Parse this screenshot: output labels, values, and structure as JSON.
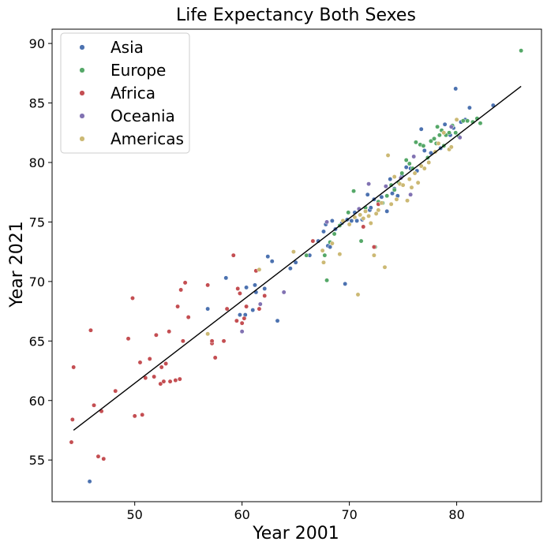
{
  "chart_data": {
    "type": "scatter",
    "title": "Life Expectancy Both Sexes",
    "xlabel": "Year 2001",
    "ylabel": "Year 2021",
    "xlim": [
      42.3,
      87.9
    ],
    "ylim": [
      51.5,
      91.2
    ],
    "xticks": [
      50,
      60,
      70,
      80
    ],
    "yticks": [
      55,
      60,
      65,
      70,
      75,
      80,
      85,
      90
    ],
    "legend_position": "upper-left",
    "grid": false,
    "fit_line": {
      "x": [
        44.3,
        86.0
      ],
      "y": [
        57.5,
        86.4
      ],
      "color": "#000000"
    },
    "series": [
      {
        "name": "Asia",
        "color": "#4c72b0",
        "points": [
          [
            45.8,
            53.2
          ],
          [
            56.8,
            67.7
          ],
          [
            58.5,
            70.3
          ],
          [
            59.8,
            67.2
          ],
          [
            60.3,
            67.2
          ],
          [
            60.4,
            69.5
          ],
          [
            61.0,
            67.6
          ],
          [
            61.3,
            69.1
          ],
          [
            61.2,
            69.7
          ],
          [
            62.1,
            69.4
          ],
          [
            62.4,
            72.1
          ],
          [
            62.8,
            71.7
          ],
          [
            63.3,
            66.7
          ],
          [
            64.5,
            71.1
          ],
          [
            65.0,
            71.6
          ],
          [
            66.3,
            72.2
          ],
          [
            67.1,
            73.4
          ],
          [
            67.6,
            74.2
          ],
          [
            67.8,
            74.8
          ],
          [
            68.0,
            73.0
          ],
          [
            68.4,
            75.1
          ],
          [
            68.2,
            72.9
          ],
          [
            68.7,
            74.4
          ],
          [
            69.3,
            74.9
          ],
          [
            69.6,
            69.8
          ],
          [
            69.8,
            75.2
          ],
          [
            70.2,
            75.1
          ],
          [
            70.5,
            75.8
          ],
          [
            70.7,
            75.1
          ],
          [
            71.2,
            75.2
          ],
          [
            71.3,
            74.6
          ],
          [
            71.7,
            77.3
          ],
          [
            71.9,
            76.0
          ],
          [
            72.0,
            76.2
          ],
          [
            72.3,
            76.9
          ],
          [
            72.7,
            76.5
          ],
          [
            73.0,
            77.1
          ],
          [
            73.5,
            75.9
          ],
          [
            73.8,
            78.6
          ],
          [
            74.0,
            77.4
          ],
          [
            74.2,
            77.8
          ],
          [
            74.5,
            77.2
          ],
          [
            74.9,
            78.9
          ],
          [
            75.3,
            79.6
          ],
          [
            75.7,
            79.5
          ],
          [
            76.3,
            79.3
          ],
          [
            76.7,
            82.8
          ],
          [
            77.0,
            81.0
          ],
          [
            77.6,
            80.8
          ],
          [
            78.5,
            81.2
          ],
          [
            78.9,
            83.2
          ],
          [
            79.4,
            82.3
          ],
          [
            79.7,
            82.9
          ],
          [
            79.9,
            86.2
          ],
          [
            80.4,
            83.4
          ],
          [
            80.8,
            83.6
          ],
          [
            81.2,
            84.6
          ],
          [
            83.4,
            84.8
          ]
        ]
      },
      {
        "name": "Europe",
        "color": "#55a868",
        "points": [
          [
            66.0,
            72.2
          ],
          [
            67.7,
            72.2
          ],
          [
            67.9,
            70.1
          ],
          [
            68.2,
            73.3
          ],
          [
            68.6,
            74.0
          ],
          [
            69.1,
            74.7
          ],
          [
            69.9,
            75.8
          ],
          [
            70.4,
            77.6
          ],
          [
            71.1,
            73.4
          ],
          [
            71.5,
            76.2
          ],
          [
            72.4,
            72.9
          ],
          [
            72.7,
            76.7
          ],
          [
            73.1,
            76.6
          ],
          [
            73.5,
            77.2
          ],
          [
            73.9,
            78.1
          ],
          [
            74.2,
            77.7
          ],
          [
            74.6,
            78.3
          ],
          [
            74.9,
            79.1
          ],
          [
            75.3,
            80.2
          ],
          [
            75.6,
            79.9
          ],
          [
            75.9,
            79.5
          ],
          [
            76.2,
            81.7
          ],
          [
            76.6,
            81.5
          ],
          [
            76.9,
            81.4
          ],
          [
            77.3,
            80.4
          ],
          [
            77.6,
            81.8
          ],
          [
            77.9,
            82.0
          ],
          [
            78.1,
            81.6
          ],
          [
            78.2,
            83.0
          ],
          [
            78.4,
            82.3
          ],
          [
            78.6,
            82.7
          ],
          [
            78.8,
            81.4
          ],
          [
            79.0,
            82.3
          ],
          [
            79.3,
            82.5
          ],
          [
            79.6,
            83.1
          ],
          [
            79.9,
            82.5
          ],
          [
            80.2,
            82.2
          ],
          [
            80.6,
            83.5
          ],
          [
            81.0,
            83.5
          ],
          [
            81.5,
            83.4
          ],
          [
            81.9,
            83.7
          ],
          [
            82.2,
            83.3
          ],
          [
            86.0,
            89.4
          ]
        ]
      },
      {
        "name": "Africa",
        "color": "#c44e52",
        "points": [
          [
            44.3,
            62.8
          ],
          [
            44.2,
            58.4
          ],
          [
            44.1,
            56.5
          ],
          [
            45.9,
            65.9
          ],
          [
            46.2,
            59.6
          ],
          [
            46.6,
            55.3
          ],
          [
            46.9,
            59.1
          ],
          [
            47.1,
            55.1
          ],
          [
            48.2,
            60.8
          ],
          [
            49.4,
            65.2
          ],
          [
            49.8,
            68.6
          ],
          [
            50.0,
            58.7
          ],
          [
            50.5,
            63.2
          ],
          [
            50.7,
            58.8
          ],
          [
            51.0,
            61.9
          ],
          [
            51.4,
            63.5
          ],
          [
            51.8,
            62.0
          ],
          [
            52.0,
            65.5
          ],
          [
            52.4,
            61.4
          ],
          [
            52.5,
            62.8
          ],
          [
            52.7,
            61.6
          ],
          [
            52.9,
            63.1
          ],
          [
            53.2,
            65.8
          ],
          [
            53.3,
            61.6
          ],
          [
            53.8,
            61.7
          ],
          [
            54.0,
            67.9
          ],
          [
            54.2,
            61.8
          ],
          [
            54.3,
            69.3
          ],
          [
            54.5,
            65.0
          ],
          [
            54.7,
            69.9
          ],
          [
            55.0,
            67.0
          ],
          [
            56.8,
            69.7
          ],
          [
            57.2,
            64.8
          ],
          [
            57.2,
            65.0
          ],
          [
            57.5,
            63.6
          ],
          [
            58.3,
            65.0
          ],
          [
            58.6,
            67.7
          ],
          [
            59.2,
            72.2
          ],
          [
            59.5,
            66.7
          ],
          [
            59.6,
            69.4
          ],
          [
            59.8,
            69.0
          ],
          [
            60.0,
            66.5
          ],
          [
            60.2,
            66.9
          ],
          [
            60.4,
            67.9
          ],
          [
            61.3,
            70.9
          ],
          [
            61.6,
            67.7
          ],
          [
            62.1,
            68.8
          ],
          [
            66.6,
            73.4
          ],
          [
            71.3,
            74.6
          ],
          [
            72.3,
            72.9
          ],
          [
            72.7,
            76.5
          ]
        ]
      },
      {
        "name": "Oceania",
        "color": "#8172b2",
        "points": [
          [
            60.0,
            65.8
          ],
          [
            61.7,
            68.1
          ],
          [
            63.9,
            69.1
          ],
          [
            67.9,
            75.0
          ],
          [
            70.9,
            76.1
          ],
          [
            71.8,
            78.2
          ],
          [
            73.4,
            78.0
          ],
          [
            74.8,
            78.7
          ],
          [
            75.7,
            77.3
          ],
          [
            76.0,
            80.5
          ],
          [
            79.5,
            83.0
          ],
          [
            80.3,
            82.1
          ]
        ]
      },
      {
        "name": "Americas",
        "color": "#ccb974",
        "points": [
          [
            56.8,
            65.6
          ],
          [
            61.6,
            71.0
          ],
          [
            64.8,
            72.5
          ],
          [
            67.5,
            72.6
          ],
          [
            67.6,
            71.6
          ],
          [
            68.4,
            73.2
          ],
          [
            69.1,
            72.3
          ],
          [
            69.4,
            75.1
          ],
          [
            70.0,
            74.8
          ],
          [
            70.5,
            75.4
          ],
          [
            70.8,
            68.9
          ],
          [
            71.0,
            75.6
          ],
          [
            71.3,
            75.3
          ],
          [
            71.5,
            75.9
          ],
          [
            71.8,
            75.5
          ],
          [
            72.0,
            74.9
          ],
          [
            72.3,
            72.2
          ],
          [
            72.5,
            75.7
          ],
          [
            72.7,
            76.0
          ],
          [
            73.0,
            76.6
          ],
          [
            73.3,
            71.2
          ],
          [
            73.6,
            80.6
          ],
          [
            73.9,
            76.5
          ],
          [
            74.2,
            78.8
          ],
          [
            74.4,
            76.9
          ],
          [
            74.7,
            78.2
          ],
          [
            75.0,
            78.1
          ],
          [
            75.4,
            76.8
          ],
          [
            75.6,
            78.6
          ],
          [
            75.8,
            77.9
          ],
          [
            76.1,
            79.1
          ],
          [
            76.4,
            78.3
          ],
          [
            76.7,
            79.7
          ],
          [
            77.0,
            79.5
          ],
          [
            77.4,
            80.0
          ],
          [
            78.0,
            80.9
          ],
          [
            78.3,
            81.6
          ],
          [
            78.8,
            82.5
          ],
          [
            79.3,
            81.1
          ],
          [
            79.5,
            81.3
          ],
          [
            80.0,
            83.6
          ]
        ]
      }
    ]
  }
}
